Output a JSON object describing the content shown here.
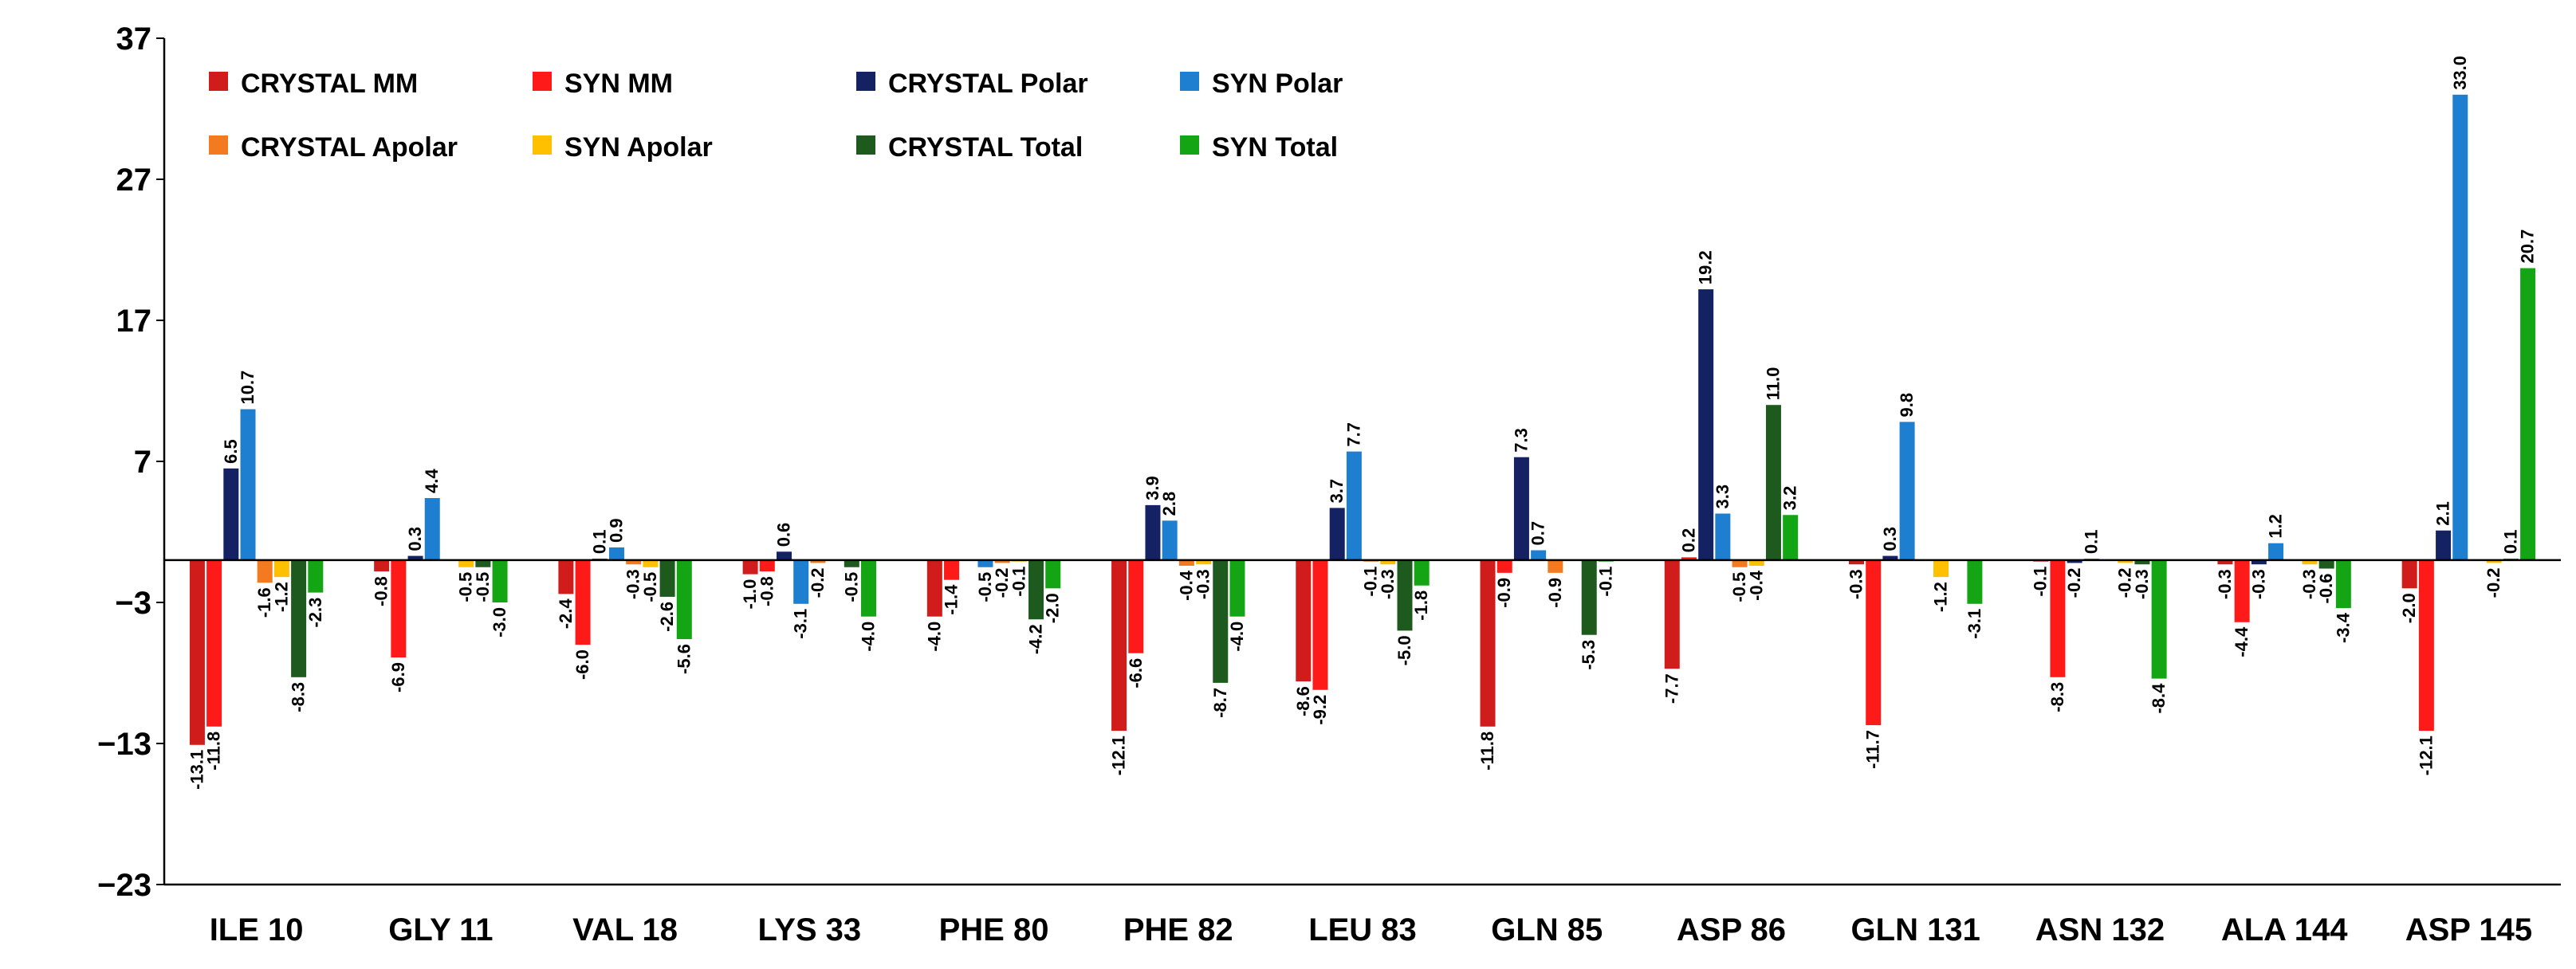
{
  "chart_data": {
    "type": "bar",
    "title": "",
    "xlabel": "",
    "ylabel": "",
    "ylim": [
      -23,
      37
    ],
    "yticks": [
      -23,
      -13,
      -3,
      7,
      17,
      27,
      37
    ],
    "ytick_labels": [
      "−23",
      "−13",
      "−3",
      "7",
      "17",
      "27",
      "37"
    ],
    "grid": false,
    "legend_position": "top-left",
    "categories": [
      "ILE 10",
      "GLY 11",
      "VAL 18",
      "LYS 33",
      "PHE 80",
      "PHE 82",
      "LEU 83",
      "GLN 85",
      "ASP 86",
      "GLN 131",
      "ASN 132",
      "ALA 144",
      "ASP 145"
    ],
    "series": [
      {
        "name": "CRYSTAL MM",
        "color": "#D11C1C",
        "values": [
          -13.1,
          -0.8,
          -2.4,
          -1.0,
          -4.0,
          -12.1,
          -8.6,
          -11.8,
          -7.7,
          -0.3,
          -0.1,
          -0.3,
          -2.0
        ],
        "labels": [
          "-13.1",
          "-0.8",
          "-2.4",
          "-1.0",
          "-4.0",
          "-12.1",
          "-8.6",
          "-11.8",
          "-7.7",
          "-0.3",
          "-0.1",
          "-0.3",
          "-2.0"
        ]
      },
      {
        "name": "SYN MM",
        "color": "#FF1A1A",
        "values": [
          -11.8,
          -6.9,
          -6.0,
          -0.8,
          -1.4,
          -6.6,
          -9.2,
          -0.9,
          0.2,
          -11.7,
          -8.3,
          -4.4,
          -12.1
        ],
        "labels": [
          "-11.8",
          "-6.9",
          "-6.0",
          "-0.8",
          "-1.4",
          "-6.6",
          "-9.2",
          "-0.9",
          "0.2",
          "-11.7",
          "-8.3",
          "-4.4",
          "-12.1"
        ]
      },
      {
        "name": "CRYSTAL Polar",
        "color": "#142264",
        "values": [
          6.5,
          0.3,
          0.1,
          0.6,
          0.0,
          3.9,
          3.7,
          7.3,
          19.2,
          0.3,
          -0.2,
          -0.3,
          2.1
        ],
        "labels": [
          "6.5",
          "0.3",
          "0.1",
          "0.6",
          "",
          "3.9",
          "3.7",
          "7.3",
          "19.2",
          "0.3",
          "-0.2",
          "-0.3",
          "2.1"
        ]
      },
      {
        "name": "SYN Polar",
        "color": "#1E7FD0",
        "values": [
          10.7,
          4.4,
          0.9,
          -3.1,
          -0.5,
          2.8,
          7.7,
          0.7,
          3.3,
          9.8,
          0.1,
          1.2,
          33.0
        ],
        "labels": [
          "10.7",
          "4.4",
          "0.9",
          "-3.1",
          "-0.5",
          "2.8",
          "7.7",
          "0.7",
          "3.3",
          "9.8",
          "0.1",
          "1.2",
          "33.0"
        ]
      },
      {
        "name": "CRYSTAL Apolar",
        "color": "#F47A1F",
        "values": [
          -1.6,
          0.0,
          -0.3,
          -0.2,
          -0.2,
          -0.4,
          -0.1,
          -0.9,
          -0.5,
          0.0,
          0.0,
          0.0,
          0.0
        ],
        "labels": [
          "-1.6",
          "",
          "-0.3",
          "-0.2",
          "-0.2",
          "-0.4",
          "-0.1",
          "-0.9",
          "-0.5",
          "",
          "",
          "",
          ""
        ]
      },
      {
        "name": "SYN Apolar",
        "color": "#FFC000",
        "values": [
          -1.2,
          -0.5,
          -0.5,
          0.0,
          -0.1,
          -0.3,
          -0.3,
          0.0,
          -0.4,
          -1.2,
          -0.2,
          -0.3,
          -0.2
        ],
        "labels": [
          "-1.2",
          "-0.5",
          "-0.5",
          "",
          "-0.1",
          "-0.3",
          "-0.3",
          "",
          "-0.4",
          "-1.2",
          "-0.2",
          "-0.3",
          "-0.2"
        ]
      },
      {
        "name": "CRYSTAL Total",
        "color": "#1E5A1E",
        "values": [
          -8.3,
          -0.5,
          -2.6,
          -0.5,
          -4.2,
          -8.7,
          -5.0,
          -5.3,
          11.0,
          0.0,
          -0.3,
          -0.6,
          0.1
        ],
        "labels": [
          "-8.3",
          "-0.5",
          "-2.6",
          "-0.5",
          "-4.2",
          "-8.7",
          "-5.0",
          "-5.3",
          "11.0",
          "",
          "-0.3",
          "-0.6",
          "0.1"
        ]
      },
      {
        "name": "SYN Total",
        "color": "#14A514",
        "values": [
          -2.3,
          -3.0,
          -5.6,
          -4.0,
          -2.0,
          -4.0,
          -1.8,
          -0.1,
          3.2,
          -3.1,
          -8.4,
          -3.4,
          20.7
        ],
        "labels": [
          "-2.3",
          "-3.0",
          "-5.6",
          "-4.0",
          "-2.0",
          "-4.0",
          "-1.8",
          "-0.1",
          "3.2",
          "-3.1",
          "-8.4",
          "-3.4",
          "20.7"
        ]
      }
    ]
  }
}
